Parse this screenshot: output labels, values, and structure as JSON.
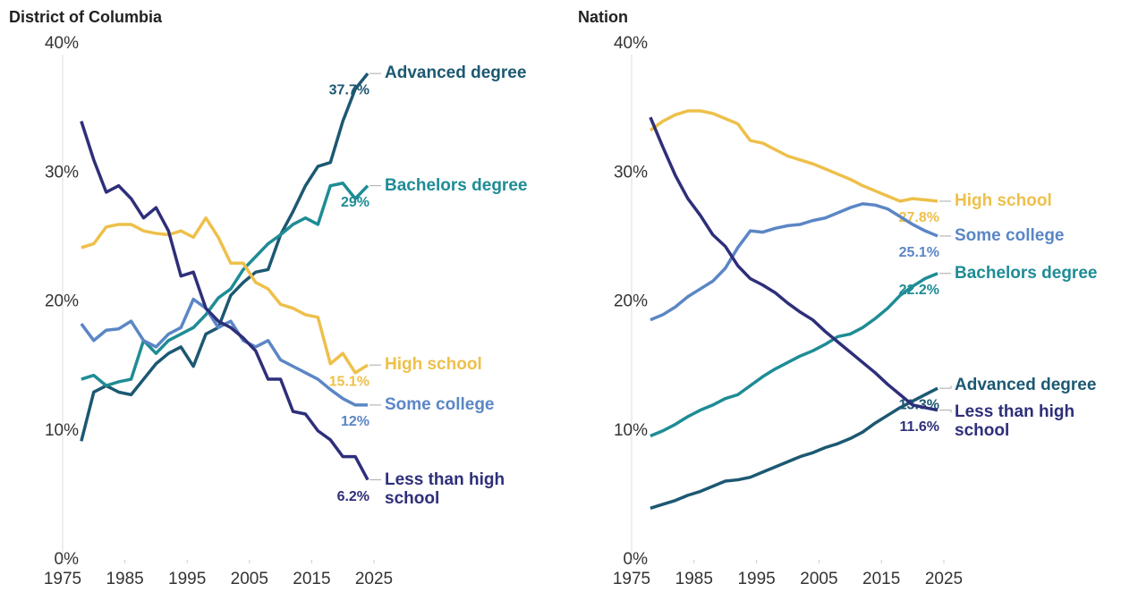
{
  "chart_data": [
    {
      "type": "line",
      "title": "District of Columbia",
      "x": [
        1978,
        1980,
        1982,
        1984,
        1986,
        1988,
        1990,
        1992,
        1994,
        1996,
        1998,
        2000,
        2002,
        2004,
        2006,
        2008,
        2010,
        2012,
        2014,
        2016,
        2018,
        2020,
        2022,
        2024
      ],
      "xlim": [
        1975,
        2025
      ],
      "xticks": [
        1975,
        1985,
        1995,
        2005,
        2015,
        2025
      ],
      "ylim": [
        0,
        40
      ],
      "yticks": [
        {
          "value": 0,
          "label": "0%"
        },
        {
          "value": 10,
          "label": "10%"
        },
        {
          "value": 20,
          "label": "20%"
        },
        {
          "value": 30,
          "label": "30%"
        },
        {
          "value": 40,
          "label": "40%"
        }
      ],
      "grid": false,
      "series": [
        {
          "name": "Advanced degree",
          "color": "#1c5872",
          "values": [
            9.2,
            13.0,
            13.5,
            13.0,
            12.8,
            14.0,
            15.2,
            16.0,
            16.5,
            15.0,
            17.5,
            18.0,
            20.5,
            21.5,
            22.3,
            22.5,
            25.2,
            27.0,
            29.0,
            30.5,
            30.8,
            34.0,
            36.5,
            37.7
          ],
          "value_labels": [
            null,
            null,
            null,
            null,
            null,
            null,
            null,
            null,
            null,
            null,
            null,
            null,
            null,
            null,
            null,
            null,
            null,
            null,
            null,
            null,
            null,
            null,
            null,
            "37.7%"
          ]
        },
        {
          "name": "Bachelors degree",
          "color": "#1e8c95",
          "values": [
            14.0,
            14.3,
            13.5,
            13.8,
            14.0,
            17.0,
            16.0,
            17.0,
            17.5,
            18.0,
            19.0,
            20.3,
            21.0,
            22.5,
            23.5,
            24.5,
            25.2,
            26.0,
            26.5,
            26.0,
            29.0,
            29.2,
            28.0,
            29.0
          ],
          "value_labels": [
            null,
            null,
            null,
            null,
            null,
            null,
            null,
            null,
            null,
            null,
            null,
            null,
            null,
            null,
            null,
            null,
            null,
            null,
            null,
            null,
            null,
            null,
            null,
            "29%"
          ]
        },
        {
          "name": "High school",
          "color": "#eec04a",
          "values": [
            24.2,
            24.5,
            25.8,
            26.0,
            26.0,
            25.5,
            25.3,
            25.2,
            25.5,
            25.0,
            26.5,
            25.0,
            23.0,
            23.0,
            21.5,
            21.0,
            19.8,
            19.5,
            19.0,
            18.8,
            15.2,
            16.0,
            14.5,
            15.1
          ],
          "value_labels": [
            null,
            null,
            null,
            null,
            null,
            null,
            null,
            null,
            null,
            null,
            null,
            null,
            null,
            null,
            null,
            null,
            null,
            null,
            null,
            null,
            null,
            null,
            null,
            "15.1%"
          ]
        },
        {
          "name": "Some college",
          "color": "#5b86c5",
          "values": [
            18.3,
            17.0,
            17.8,
            17.9,
            18.5,
            17.0,
            16.5,
            17.5,
            18.0,
            20.2,
            19.5,
            18.0,
            18.5,
            17.0,
            16.5,
            17.0,
            15.5,
            15.0,
            14.5,
            14.0,
            13.2,
            12.5,
            12.0,
            12.0
          ],
          "value_labels": [
            null,
            null,
            null,
            null,
            null,
            null,
            null,
            null,
            null,
            null,
            null,
            null,
            null,
            null,
            null,
            null,
            null,
            null,
            null,
            null,
            null,
            null,
            null,
            "12%"
          ]
        },
        {
          "name": "Less than high school",
          "color": "#2e2f7a",
          "values": [
            34.0,
            31.0,
            28.5,
            29.0,
            28.0,
            26.5,
            27.3,
            25.5,
            22.0,
            22.3,
            19.5,
            18.5,
            18.0,
            17.2,
            16.2,
            14.0,
            14.0,
            11.5,
            11.3,
            10.0,
            9.3,
            8.0,
            8.0,
            6.2
          ],
          "value_labels": [
            null,
            null,
            null,
            null,
            null,
            null,
            null,
            null,
            null,
            null,
            null,
            null,
            null,
            null,
            null,
            null,
            null,
            null,
            null,
            null,
            null,
            null,
            null,
            "6.2%"
          ]
        }
      ]
    },
    {
      "type": "line",
      "title": "Nation",
      "x": [
        1978,
        1980,
        1982,
        1984,
        1986,
        1988,
        1990,
        1992,
        1994,
        1996,
        1998,
        2000,
        2002,
        2004,
        2006,
        2008,
        2010,
        2012,
        2014,
        2016,
        2018,
        2020,
        2022,
        2024
      ],
      "xlim": [
        1975,
        2025
      ],
      "xticks": [
        1975,
        1985,
        1995,
        2005,
        2015,
        2025
      ],
      "ylim": [
        0,
        40
      ],
      "yticks": [
        {
          "value": 0,
          "label": "0%"
        },
        {
          "value": 10,
          "label": "10%"
        },
        {
          "value": 20,
          "label": "20%"
        },
        {
          "value": 30,
          "label": "30%"
        },
        {
          "value": 40,
          "label": "40%"
        }
      ],
      "grid": false,
      "series": [
        {
          "name": "High school",
          "color": "#eec04a",
          "values": [
            33.3,
            34.0,
            34.5,
            34.8,
            34.8,
            34.6,
            34.2,
            33.8,
            32.5,
            32.3,
            31.8,
            31.3,
            31.0,
            30.7,
            30.3,
            29.9,
            29.5,
            29.0,
            28.6,
            28.2,
            27.8,
            28.0,
            27.9,
            27.8
          ],
          "value_labels": [
            null,
            null,
            null,
            null,
            null,
            null,
            null,
            null,
            null,
            null,
            null,
            null,
            null,
            null,
            null,
            null,
            null,
            null,
            null,
            null,
            null,
            null,
            null,
            "27.8%"
          ]
        },
        {
          "name": "Some college",
          "color": "#5b86c5",
          "values": [
            18.6,
            19.0,
            19.6,
            20.4,
            21.0,
            21.6,
            22.6,
            24.2,
            25.5,
            25.4,
            25.7,
            25.9,
            26.0,
            26.3,
            26.5,
            26.9,
            27.3,
            27.6,
            27.5,
            27.2,
            26.6,
            26.0,
            25.5,
            25.1
          ],
          "value_labels": [
            null,
            null,
            null,
            null,
            null,
            null,
            null,
            null,
            null,
            null,
            null,
            null,
            null,
            null,
            null,
            null,
            null,
            null,
            null,
            null,
            null,
            null,
            null,
            "25.1%"
          ]
        },
        {
          "name": "Bachelors degree",
          "color": "#1e8c95",
          "values": [
            9.6,
            10.0,
            10.5,
            11.1,
            11.6,
            12.0,
            12.5,
            12.8,
            13.5,
            14.2,
            14.8,
            15.3,
            15.8,
            16.2,
            16.7,
            17.3,
            17.5,
            18.0,
            18.7,
            19.5,
            20.5,
            21.2,
            21.8,
            22.2
          ],
          "value_labels": [
            null,
            null,
            null,
            null,
            null,
            null,
            null,
            null,
            null,
            null,
            null,
            null,
            null,
            null,
            null,
            null,
            null,
            null,
            null,
            null,
            null,
            null,
            null,
            "22.2%"
          ]
        },
        {
          "name": "Advanced degree",
          "color": "#1c5872",
          "values": [
            4.0,
            4.3,
            4.6,
            5.0,
            5.3,
            5.7,
            6.1,
            6.2,
            6.4,
            6.8,
            7.2,
            7.6,
            8.0,
            8.3,
            8.7,
            9.0,
            9.4,
            9.9,
            10.6,
            11.2,
            11.8,
            12.3,
            12.8,
            13.3
          ],
          "value_labels": [
            null,
            null,
            null,
            null,
            null,
            null,
            null,
            null,
            null,
            null,
            null,
            null,
            null,
            null,
            null,
            null,
            null,
            null,
            null,
            null,
            null,
            null,
            null,
            "13.3%"
          ]
        },
        {
          "name": "Less than high school",
          "color": "#2e2f7a",
          "values": [
            34.3,
            32.0,
            29.8,
            28.0,
            26.7,
            25.2,
            24.3,
            22.8,
            21.8,
            21.3,
            20.7,
            19.9,
            19.2,
            18.6,
            17.7,
            16.9,
            16.1,
            15.3,
            14.5,
            13.6,
            12.8,
            12.0,
            11.8,
            11.6
          ],
          "value_labels": [
            null,
            null,
            null,
            null,
            null,
            null,
            null,
            null,
            null,
            null,
            null,
            null,
            null,
            null,
            null,
            null,
            null,
            null,
            null,
            null,
            null,
            null,
            null,
            "11.6%"
          ]
        }
      ]
    }
  ]
}
